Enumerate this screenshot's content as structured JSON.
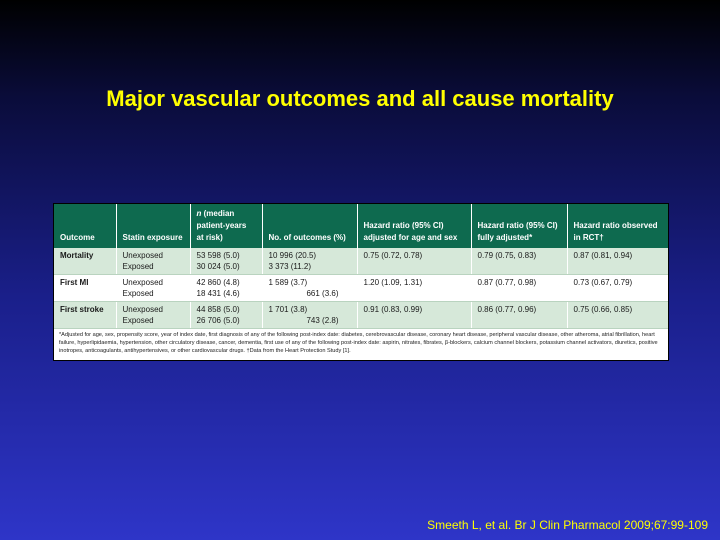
{
  "title": "Major vascular outcomes and all cause mortality",
  "table": {
    "headers": [
      {
        "text": "Outcome"
      },
      {
        "text": "Statin exposure"
      },
      {
        "italic": "n",
        "text": " (median patient-years at risk)"
      },
      {
        "text": "No. of outcomes (%)"
      },
      {
        "text": "Hazard ratio (95% CI) adjusted for age and sex"
      },
      {
        "text": "Hazard ratio (95% CI) fully adjusted*"
      },
      {
        "text": "Hazard ratio observed in RCT†"
      }
    ],
    "groups": [
      {
        "outcome": "Mortality",
        "rows": [
          {
            "exposure": "Unexposed",
            "n": "53 598 (5.0)",
            "outcomes": "10 996 (20.5)",
            "hr_age_sex": "0.75 (0.72, 0.78)",
            "hr_full": "0.79 (0.75, 0.83)",
            "hr_rct": "0.87 (0.81, 0.94)"
          },
          {
            "exposure": "Exposed",
            "n": "30 024 (5.0)",
            "outcomes": "3 373 (11.2)",
            "hr_age_sex": "",
            "hr_full": "",
            "hr_rct": ""
          }
        ]
      },
      {
        "outcome": "First MI",
        "rows": [
          {
            "exposure": "Unexposed",
            "n": "42 860 (4.8)",
            "outcomes": "1 589 (3.7)",
            "hr_age_sex": "1.20 (1.09, 1.31)",
            "hr_full": "0.87 (0.77, 0.98)",
            "hr_rct": "0.73 (0.67, 0.79)"
          },
          {
            "exposure": "Exposed",
            "n": "18 431 (4.6)",
            "outcomes": "661 (3.6)",
            "hr_age_sex": "",
            "hr_full": "",
            "hr_rct": ""
          }
        ]
      },
      {
        "outcome": "First stroke",
        "rows": [
          {
            "exposure": "Unexposed",
            "n": "44 858 (5.0)",
            "outcomes": "1 701 (3.8)",
            "hr_age_sex": "0.91 (0.83, 0.99)",
            "hr_full": "0.86 (0.77, 0.96)",
            "hr_rct": "0.75 (0.66, 0.85)"
          },
          {
            "exposure": "Exposed",
            "n": "26 706 (5.0)",
            "outcomes": "743 (2.8)",
            "hr_age_sex": "",
            "hr_full": "",
            "hr_rct": ""
          }
        ]
      }
    ],
    "footnote": "*Adjusted for age, sex, propensity score, year of index date, first diagnosis of any of the following post-index date: diabetes, cerebrovascular disease, coronary heart disease, peripheral vascular disease, other atheroma, atrial fibrillation, heart failure, hyperlipidaemia, hypertension, other circulatory disease, cancer, dementia, first use of any of the following post-index date: aspirin, nitrates, fibrates, β-blockers, calcium channel blockers, potassium channel activators, diuretics, positive inotropes, anticoagulants, antihypertensives, or other cardiovascular drugs. †Data from the Heart Protection Study [1]."
  },
  "citation": "Smeeth L, et al. Br J Clin Pharmacol 2009;67:99-109",
  "colors": {
    "title": "#ffff00",
    "header_bg": "#0e6a4f",
    "row_shade": "#d6e8d9",
    "background_top": "#000000",
    "background_bottom": "#2e35c8"
  }
}
